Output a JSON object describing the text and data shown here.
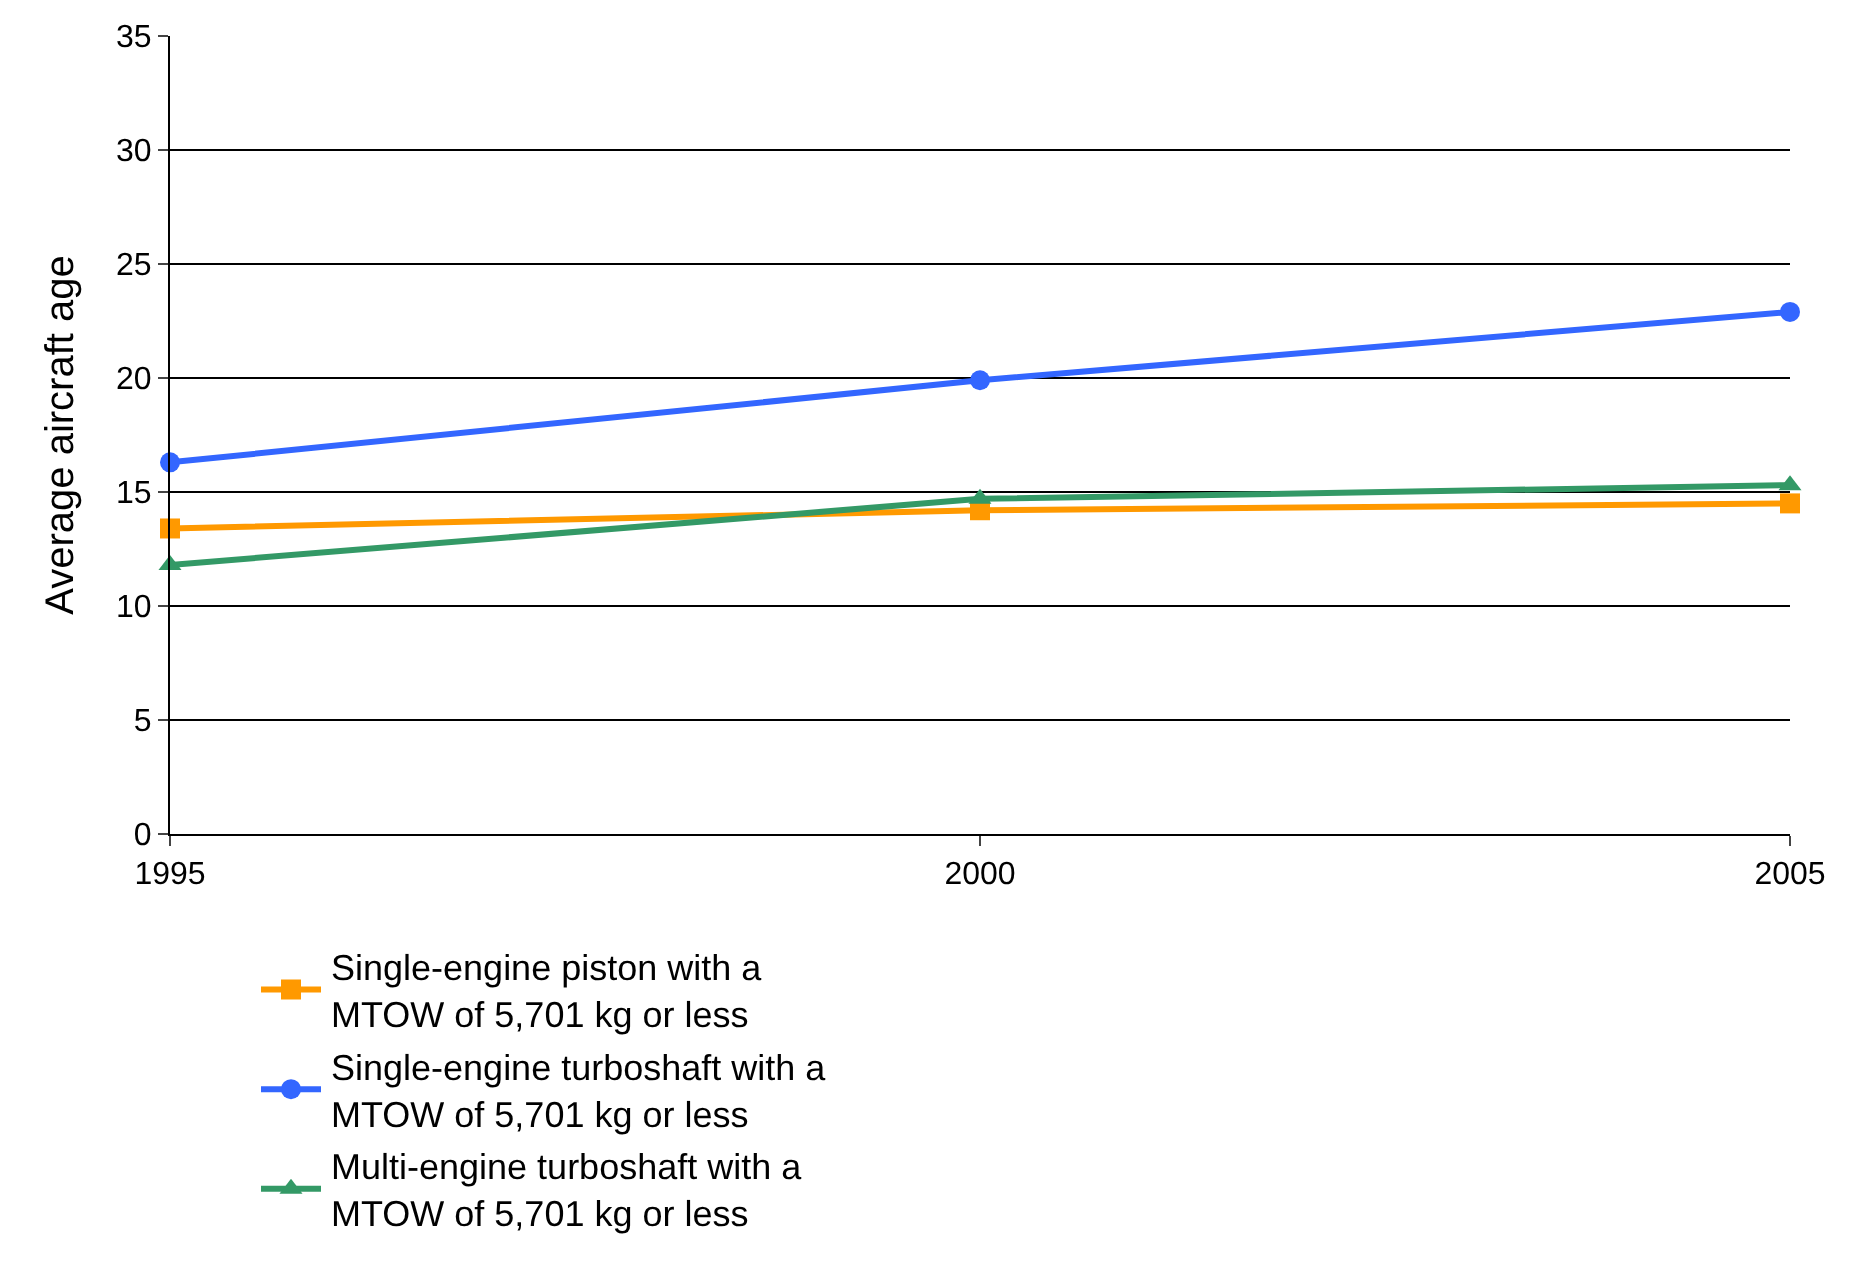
{
  "chart_data": {
    "type": "line",
    "ylabel": "Average aircraft age",
    "x": [
      1995,
      2000,
      2005
    ],
    "series": [
      {
        "name": "Single-engine piston with a MTOW of 5,701 kg or less",
        "color": "#ff9900",
        "values": [
          13.4,
          14.2,
          14.5
        ],
        "marker": "square"
      },
      {
        "name": "Single-engine turboshaft with a MTOW of 5,701 kg or less",
        "color": "#3366ff",
        "values": [
          16.3,
          19.9,
          22.9
        ],
        "marker": "circle"
      },
      {
        "name": "Multi-engine turboshaft with a MTOW of 5,701 kg or less",
        "color": "#339966",
        "values": [
          11.8,
          14.7,
          15.3
        ],
        "marker": "triangle"
      }
    ],
    "xlim": [
      1995,
      2005
    ],
    "xticks": [
      1995,
      2000,
      2005
    ],
    "ylim": [
      0,
      35
    ],
    "yticks": [
      0,
      5,
      10,
      15,
      20,
      25,
      30,
      35
    ],
    "grid": "y",
    "legend": "bottom",
    "line_style": "solid"
  }
}
